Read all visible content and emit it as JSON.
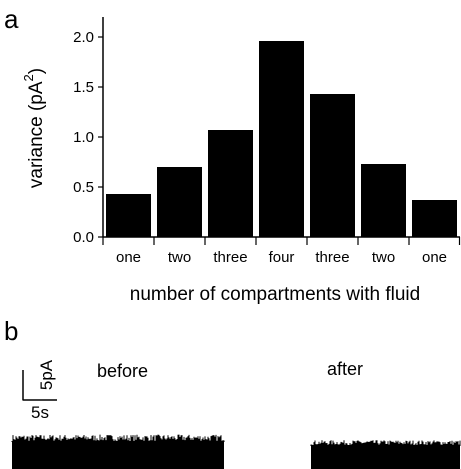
{
  "panel_a": {
    "label": "a"
  },
  "panel_b": {
    "label": "b",
    "before_label": "before",
    "after_label": "after",
    "scale_bar": {
      "y_label": "5pA",
      "x_label": "5s"
    },
    "trace_color": "#000000"
  },
  "chart_data": {
    "type": "bar",
    "categories": [
      "one",
      "two",
      "three",
      "four",
      "three",
      "two",
      "one"
    ],
    "values": [
      0.43,
      0.7,
      1.07,
      1.96,
      1.43,
      0.73,
      0.37
    ],
    "xlabel": "number of compartments with fluid",
    "ylabel": {
      "text": "variance (pA",
      "superscript": "2",
      "suffix": ")"
    },
    "ylim": [
      0,
      2.2
    ],
    "yticks": [
      "0.0",
      "0.5",
      "1.0",
      "1.5",
      "2.0"
    ],
    "grid": false,
    "bar_color": "#000000"
  }
}
